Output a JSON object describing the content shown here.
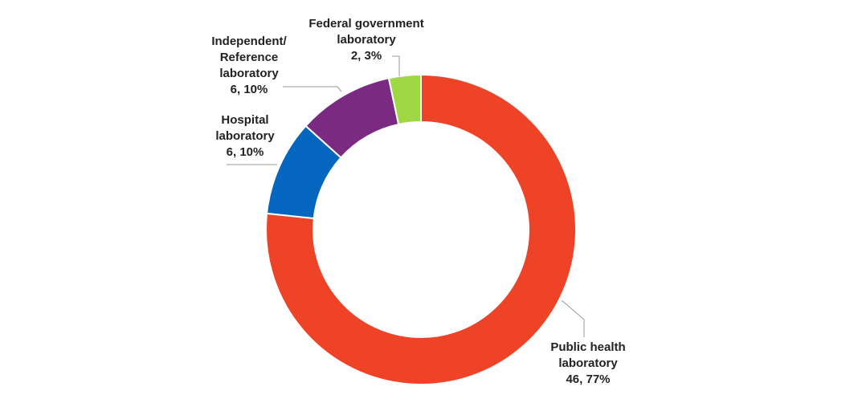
{
  "chart_data": {
    "type": "donut",
    "categories": [
      [
        "Public health",
        "laboratory"
      ],
      [
        "Hospital",
        "laboratory"
      ],
      [
        "Independent/",
        "Reference",
        "laboratory"
      ],
      [
        "Federal government",
        "laboratory"
      ]
    ],
    "values": [
      46,
      6,
      6,
      2
    ],
    "value_labels": [
      "46, 77%",
      "6, 10%",
      "6, 10%",
      "2, 3%"
    ],
    "colors": [
      "#ee4327",
      "#0466bf",
      "#7b2a82",
      "#9ed944"
    ]
  }
}
